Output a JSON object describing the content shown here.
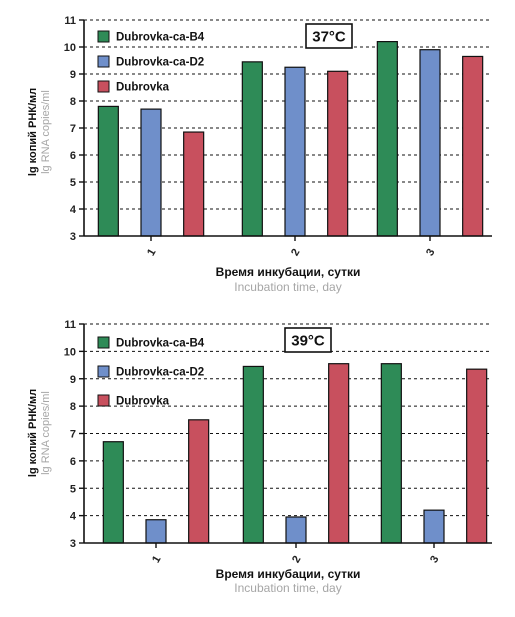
{
  "colors": {
    "Dubrovka-ca-B4": "#2e8b57",
    "Dubrovka-ca-D2": "#6f8fca",
    "Dubrovka": "#c8505e"
  },
  "chart_data": [
    {
      "type": "bar",
      "title": "37°C",
      "categories": [
        "1",
        "2",
        "3"
      ],
      "series": [
        {
          "name": "Dubrovka-ca-B4",
          "values": [
            7.8,
            9.45,
            10.2
          ]
        },
        {
          "name": "Dubrovka-ca-D2",
          "values": [
            7.7,
            9.25,
            9.9
          ]
        },
        {
          "name": "Dubrovka",
          "values": [
            6.85,
            9.1,
            9.65
          ]
        }
      ],
      "ylim": [
        3,
        11
      ],
      "yticks": [
        "3",
        "4",
        "5",
        "6",
        "7",
        "8",
        "9",
        "10",
        "11"
      ],
      "xlabel": "Время инкубации, сутки",
      "xlabel_en": "Incubation time, day",
      "ylabel": "lg копий РНК/мл",
      "ylabel_en": "lg RNA copies/ml",
      "legend_position": "top-left",
      "grid": "horizontal-dashed"
    },
    {
      "type": "bar",
      "title": "39°C",
      "categories": [
        "1",
        "2",
        "3"
      ],
      "series": [
        {
          "name": "Dubrovka-ca-B4",
          "values": [
            6.7,
            9.45,
            9.55
          ]
        },
        {
          "name": "Dubrovka-ca-D2",
          "values": [
            3.85,
            3.95,
            4.2
          ]
        },
        {
          "name": "Dubrovka",
          "values": [
            7.5,
            9.55,
            9.35
          ]
        }
      ],
      "ylim": [
        3,
        11
      ],
      "yticks": [
        "3",
        "4",
        "5",
        "6",
        "7",
        "8",
        "9",
        "10",
        "11"
      ],
      "xlabel": "Время инкубации, сутки",
      "xlabel_en": "Incubation time, day",
      "ylabel": "lg копий РНК/мл",
      "ylabel_en": "lg RNA copies/ml",
      "legend_position": "top-left",
      "grid": "horizontal-dashed"
    }
  ]
}
